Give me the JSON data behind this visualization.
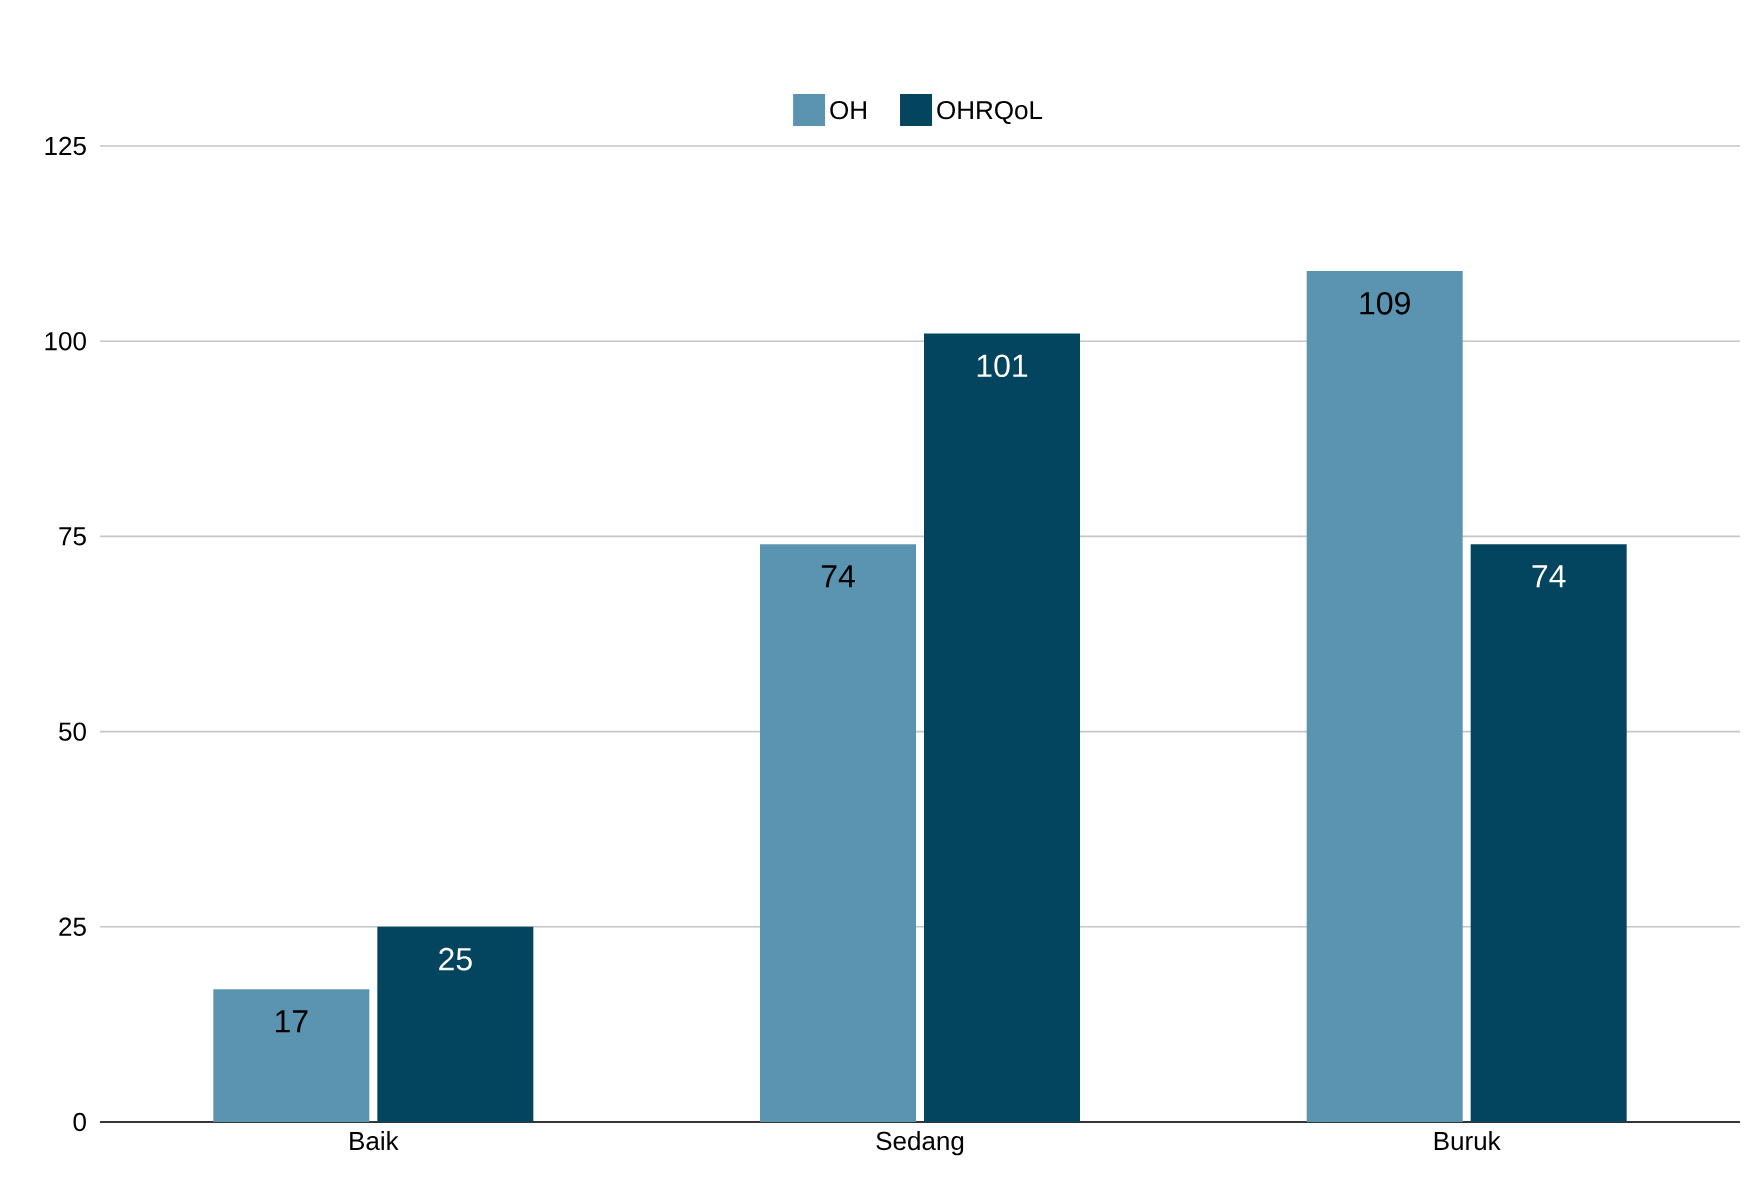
{
  "chart_data": {
    "type": "bar",
    "categories": [
      "Baik",
      "Sedang",
      "Buruk"
    ],
    "series": [
      {
        "name": "OH",
        "color": "#5b94b1",
        "values": [
          17,
          74,
          109
        ]
      },
      {
        "name": "OHRQoL",
        "color": "#03445f",
        "values": [
          25,
          101,
          74
        ]
      }
    ],
    "ylim": [
      0,
      125
    ],
    "yticks": [
      0,
      25,
      50,
      75,
      100,
      125
    ],
    "grid": "y",
    "legend": "top",
    "data_labels": true
  }
}
